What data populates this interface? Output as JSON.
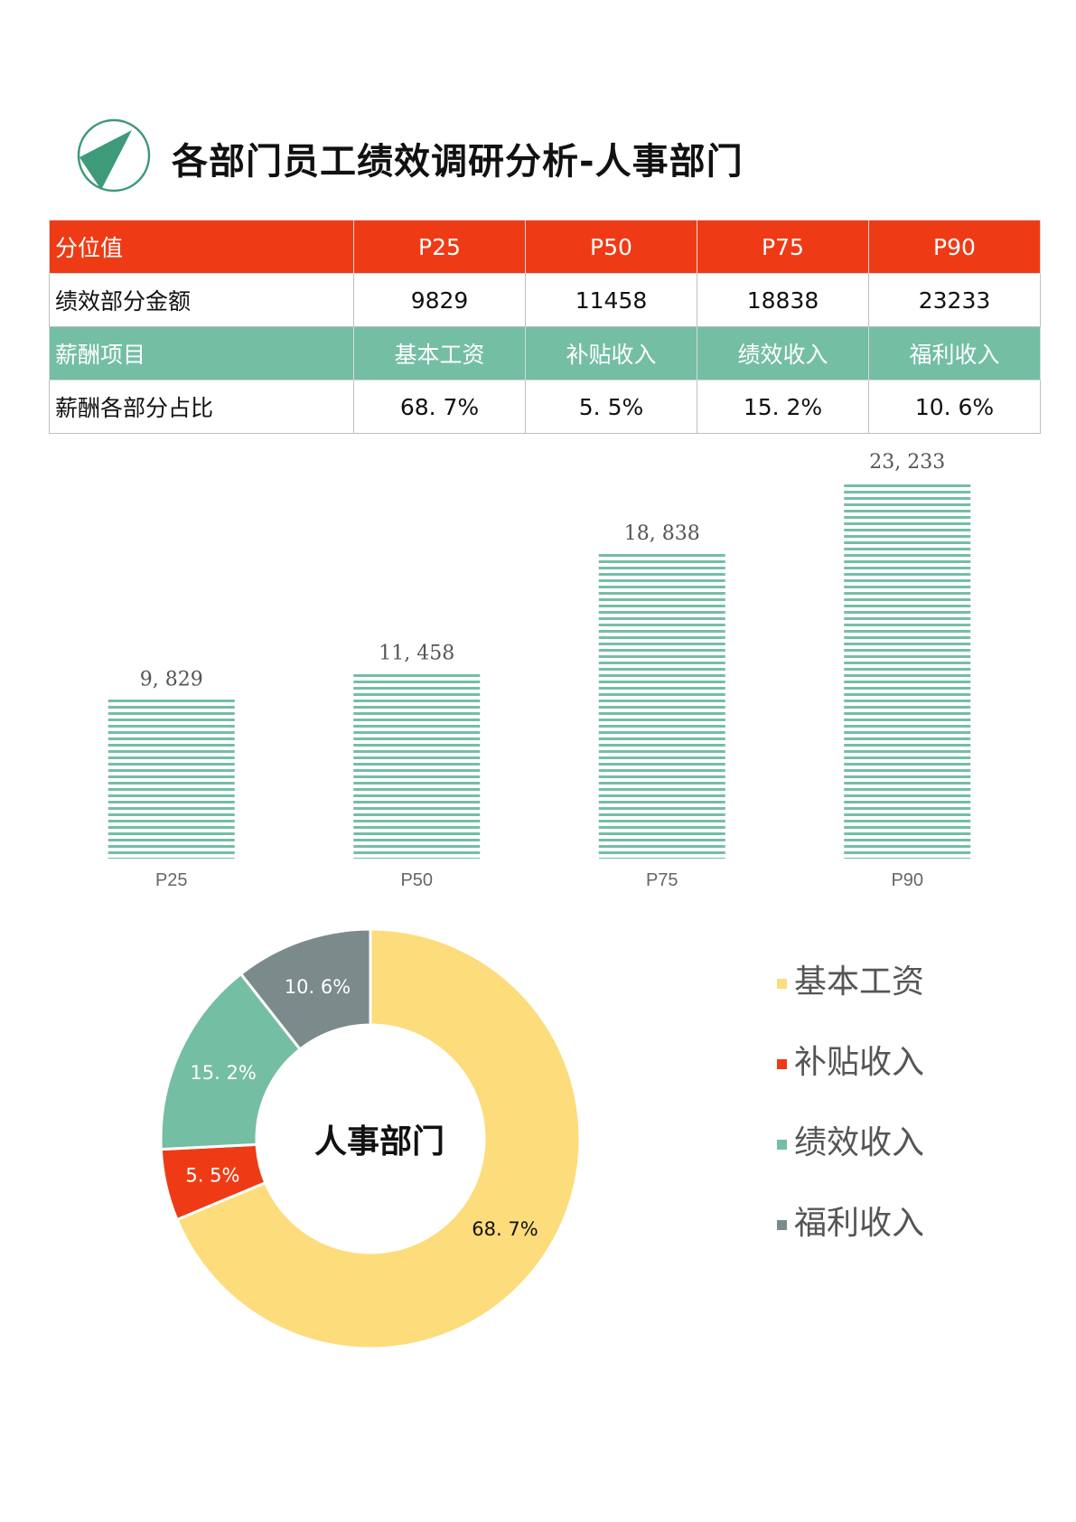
{
  "title": "各部门员工绩效调研分析-人事部门",
  "colors": {
    "red": "#ee3b16",
    "green": "#74bea4",
    "yellow": "#fcdc7b",
    "gray": "#7b8a8b",
    "logo_green": "#3e9a78"
  },
  "table": {
    "rows": [
      {
        "style": "red",
        "cells": [
          "分位值",
          "P25",
          "P50",
          "P75",
          "P90"
        ]
      },
      {
        "style": "plain",
        "cells": [
          "绩效部分金额",
          "9829",
          "11458",
          "18838",
          "23233"
        ]
      },
      {
        "style": "green",
        "cells": [
          "薪酬项目",
          "基本工资",
          "补贴收入",
          "绩效收入",
          "福利收入"
        ]
      },
      {
        "style": "plain",
        "cells": [
          "薪酬各部分占比",
          "68. 7%",
          "5. 5%",
          "15. 2%",
          "10. 6%"
        ]
      }
    ]
  },
  "chart_data": [
    {
      "type": "bar",
      "categories": [
        "P25",
        "P50",
        "P75",
        "P90"
      ],
      "values": [
        9829,
        11458,
        18838,
        23233
      ],
      "data_labels": [
        "9, 829",
        "11, 458",
        "18, 838",
        "23, 233"
      ],
      "ylim": [
        0,
        23233
      ],
      "grid": false,
      "bar_color": "#74bea4",
      "bar_fill": "horizontal-stripes"
    },
    {
      "type": "pie",
      "variant": "donut",
      "center_label": "人事部门",
      "slices": [
        {
          "name": "基本工资",
          "value": 68.7,
          "label": "68. 7%",
          "color": "#fcdc7b"
        },
        {
          "name": "补贴收入",
          "value": 5.5,
          "label": "5. 5%",
          "color": "#ee3b16"
        },
        {
          "name": "绩效收入",
          "value": 15.2,
          "label": "15. 2%",
          "color": "#74bea4"
        },
        {
          "name": "福利收入",
          "value": 10.6,
          "label": "10. 6%",
          "color": "#7b8a8b"
        }
      ],
      "legend_position": "right"
    }
  ]
}
